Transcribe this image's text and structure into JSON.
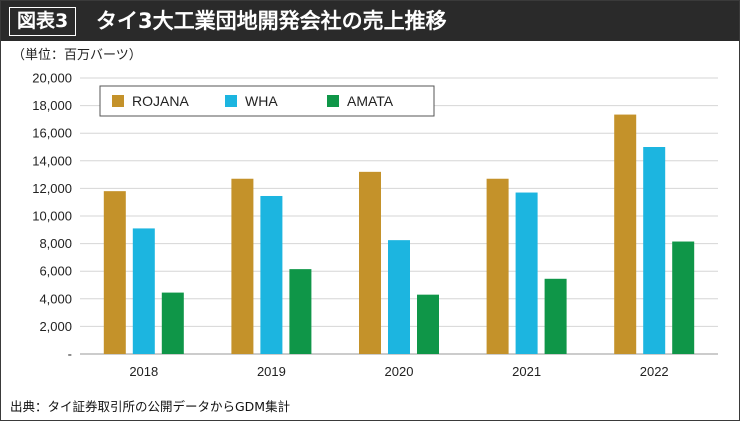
{
  "header": {
    "figure_label": "図表3",
    "title": "タイ3大工業団地開発会社の売上推移"
  },
  "colors": {
    "header_bg": "#2a2a2a",
    "ROJANA": "#c4922a",
    "WHA": "#1cb5e0",
    "AMATA": "#0f9648"
  },
  "chart_data": {
    "type": "bar",
    "title": "タイ3大工業団地開発会社の売上推移",
    "ylabel": "（単位：百万バーツ）",
    "xlabel": "",
    "categories": [
      "2018",
      "2019",
      "2020",
      "2021",
      "2022"
    ],
    "series": [
      {
        "name": "ROJANA",
        "color": "#c4922a",
        "values": [
          11800,
          12700,
          13200,
          12700,
          17350
        ]
      },
      {
        "name": "WHA",
        "color": "#1cb5e0",
        "values": [
          9100,
          11450,
          8250,
          11700,
          15000
        ]
      },
      {
        "name": "AMATA",
        "color": "#0f9648",
        "values": [
          4450,
          6150,
          4300,
          5450,
          8150
        ]
      }
    ],
    "ylim": [
      0,
      20000
    ],
    "yticks": [
      0,
      2000,
      4000,
      6000,
      8000,
      10000,
      12000,
      14000,
      16000,
      18000,
      20000
    ],
    "ytick_labels": [
      "-",
      "2,000",
      "4,000",
      "6,000",
      "8,000",
      "10,000",
      "12,000",
      "14,000",
      "16,000",
      "18,000",
      "20,000"
    ],
    "grid": true,
    "legend_position": "top-left"
  },
  "source": "出典：タイ証券取引所の公開データからGDM集計"
}
